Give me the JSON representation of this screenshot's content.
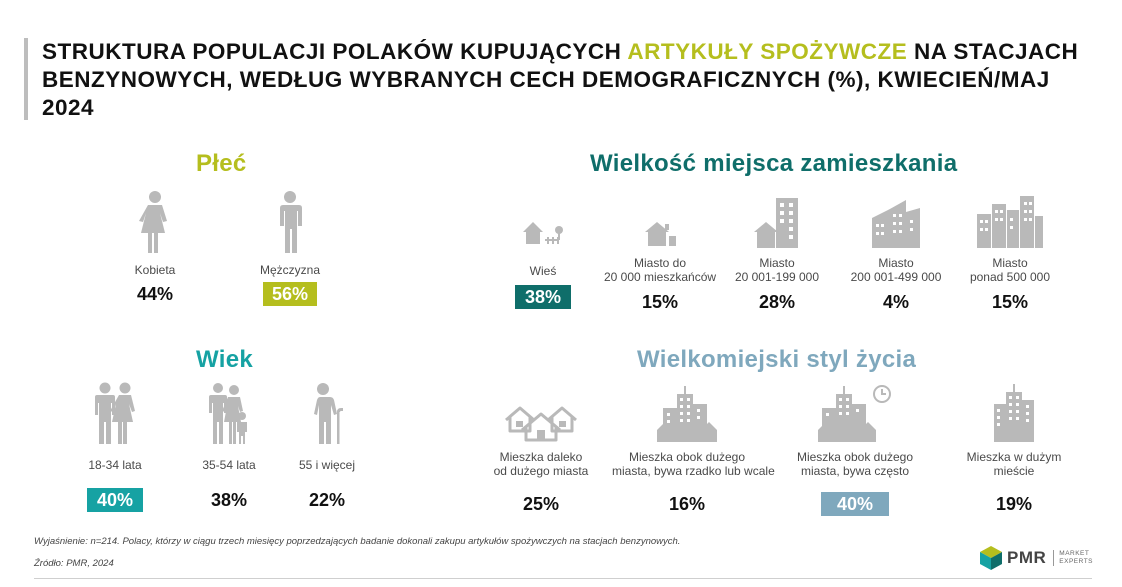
{
  "title": {
    "part1": "STRUKTURA POPULACJI POLAKÓW KUPUJĄCYCH ",
    "highlight": "ARTYKUŁY SPOŻYWCZE",
    "part2": " NA STACJACH BENZYNOWYCH, WEDŁUG WYBRANYCH CECH DEMOGRAFICZNYCH (%), KWIECIEŃ/MAJ 2024"
  },
  "colors": {
    "lime": "#b5be1e",
    "dark_teal": "#0f6e6a",
    "teal": "#16a2a3",
    "blue_gray": "#7fa8bd",
    "icon_gray": "#b9b9b9"
  },
  "gender": {
    "title": "Płeć",
    "items": [
      {
        "icon": "woman-icon",
        "label": "Kobieta",
        "value": "44%",
        "highlighted": false
      },
      {
        "icon": "man-icon",
        "label": "Mężczyzna",
        "value": "56%",
        "highlighted": true
      }
    ]
  },
  "place": {
    "title": "Wielkość miejsca zamieszkania",
    "items": [
      {
        "icon": "village-icon",
        "label": "Wieś",
        "value": "38%",
        "highlighted": true
      },
      {
        "icon": "small-town-icon",
        "label_1": "Miasto do",
        "label_2": "20 000 mieszkańców",
        "value": "15%",
        "highlighted": false
      },
      {
        "icon": "town-icon",
        "label_1": "Miasto",
        "label_2": "20 001-199 000",
        "value": "28%",
        "highlighted": false
      },
      {
        "icon": "city-icon",
        "label_1": "Miasto",
        "label_2": "200 001-499 000",
        "value": "4%",
        "highlighted": false
      },
      {
        "icon": "big-city-icon",
        "label_1": "Miasto",
        "label_2": "ponad 500 000",
        "value": "15%",
        "highlighted": false
      }
    ]
  },
  "age": {
    "title": "Wiek",
    "items": [
      {
        "icon": "young-couple-icon",
        "label": "18-34 lata",
        "value": "40%",
        "highlighted": true
      },
      {
        "icon": "family-icon",
        "label": "35-54 lata",
        "value": "38%",
        "highlighted": false
      },
      {
        "icon": "senior-icon",
        "label": "55 i więcej",
        "value": "22%",
        "highlighted": false
      }
    ]
  },
  "lifestyle": {
    "title": "Wielkomiejski styl życia",
    "items": [
      {
        "icon": "houses-icon",
        "label_1": "Mieszka daleko",
        "label_2": "od dużego miasta",
        "value": "25%",
        "highlighted": false
      },
      {
        "icon": "skyline-icon",
        "label_1": "Mieszka obok dużego",
        "label_2": "miasta, bywa rzadko lub wcale",
        "value": "16%",
        "highlighted": false
      },
      {
        "icon": "skyline-clock-icon",
        "label_1": "Mieszka obok dużego",
        "label_2": "miasta, bywa często",
        "value": "40%",
        "highlighted": true
      },
      {
        "icon": "skyscraper-icon",
        "label_1": "Mieszka w dużym",
        "label_2": "mieście",
        "value": "19%",
        "highlighted": false
      }
    ]
  },
  "note": "Wyjaśnienie: n=214. Polacy, którzy w ciągu trzech miesięcy poprzedzających badanie dokonali zakupu artykułów spożywczych na stacjach benzynowych.",
  "source": "Źródło: PMR,  2024",
  "logo": {
    "name": "PMR",
    "tagline_1": "MARKET",
    "tagline_2": "EXPERTS"
  }
}
